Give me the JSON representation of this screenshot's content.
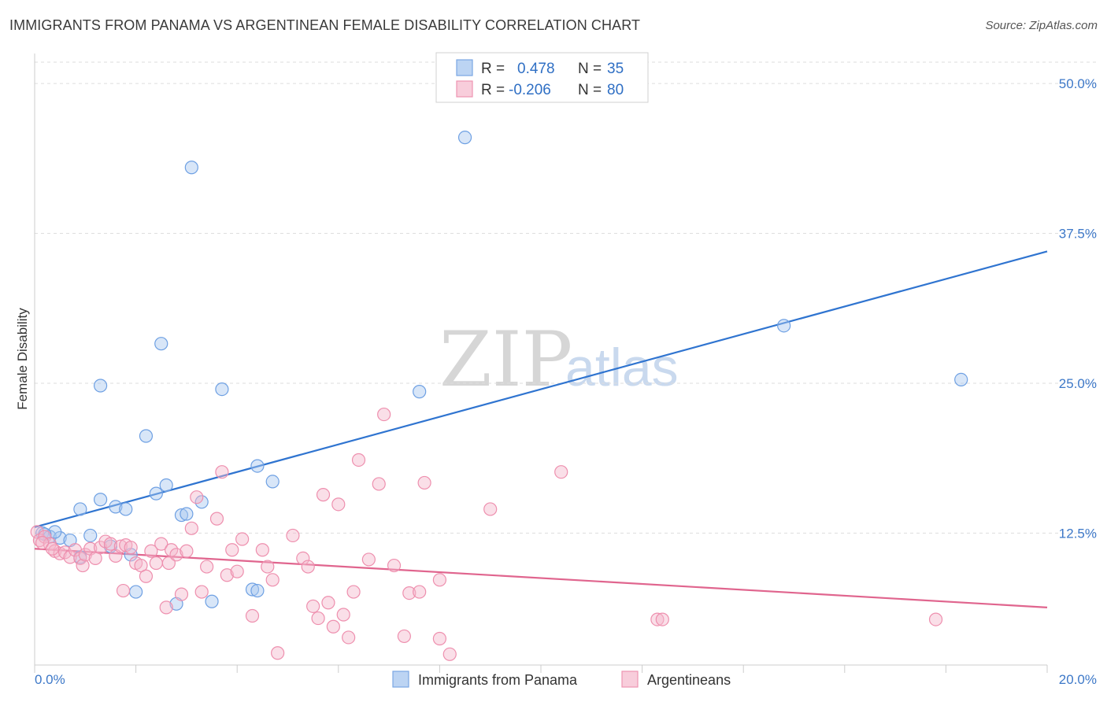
{
  "header": {
    "title": "IMMIGRANTS FROM PANAMA VS ARGENTINEAN FEMALE DISABILITY CORRELATION CHART",
    "source": "Source: ZipAtlas.com"
  },
  "watermark": {
    "zip": "ZIP",
    "atlas": "atlas"
  },
  "legend": {
    "rows": [
      {
        "r_label": "R =",
        "r_value": "0.478",
        "n_label": "N =",
        "n_value": "35",
        "color": "#a9c8f0"
      },
      {
        "r_label": "R =",
        "r_value": "-0.206",
        "n_label": "N =",
        "n_value": "80",
        "color": "#f5b8cc"
      }
    ]
  },
  "chart_data": {
    "type": "scatter",
    "title": "IMMIGRANTS FROM PANAMA VS ARGENTINEAN FEMALE DISABILITY CORRELATION CHART",
    "xlabel": "",
    "ylabel": "Female Disability",
    "xlim": [
      0,
      20
    ],
    "ylim": [
      1.5,
      52.5
    ],
    "y_ticks": [
      12.5,
      25.0,
      37.5,
      50.0
    ],
    "y_tick_labels": [
      "12.5%",
      "25.0%",
      "37.5%",
      "50.0%"
    ],
    "x_tick_labels": [
      "0.0%",
      "20.0%"
    ],
    "grid": true,
    "legend_position": "top-center",
    "series": [
      {
        "name": "Immigrants from Panama",
        "color": "#6ea0e3",
        "fill": "#a9c8f0",
        "line_color": "#2f74d0",
        "trend": {
          "x": [
            0,
            20
          ],
          "y": [
            13.0,
            36.0
          ]
        },
        "points": [
          [
            0.15,
            12.5
          ],
          [
            0.3,
            12.2
          ],
          [
            0.5,
            12.1
          ],
          [
            0.7,
            11.9
          ],
          [
            0.4,
            12.6
          ],
          [
            0.9,
            10.5
          ],
          [
            1.1,
            12.3
          ],
          [
            0.9,
            14.5
          ],
          [
            1.3,
            24.8
          ],
          [
            1.3,
            15.3
          ],
          [
            1.5,
            11.4
          ],
          [
            1.6,
            14.7
          ],
          [
            1.8,
            14.5
          ],
          [
            1.9,
            10.7
          ],
          [
            2.0,
            7.6
          ],
          [
            2.2,
            20.6
          ],
          [
            2.4,
            15.8
          ],
          [
            2.5,
            28.3
          ],
          [
            2.6,
            16.5
          ],
          [
            2.8,
            6.6
          ],
          [
            2.9,
            14.0
          ],
          [
            3.0,
            14.1
          ],
          [
            3.1,
            43.0
          ],
          [
            3.3,
            15.1
          ],
          [
            3.5,
            6.8
          ],
          [
            3.7,
            24.5
          ],
          [
            4.3,
            7.8
          ],
          [
            4.4,
            18.1
          ],
          [
            4.4,
            7.7
          ],
          [
            4.7,
            16.8
          ],
          [
            7.6,
            24.3
          ],
          [
            8.5,
            45.5
          ],
          [
            14.8,
            29.8
          ],
          [
            18.3,
            25.3
          ],
          [
            0.2,
            12.4
          ]
        ]
      },
      {
        "name": "Argentineans",
        "color": "#ee8fae",
        "fill": "#f5b8cc",
        "line_color": "#e0658e",
        "trend": {
          "x": [
            0,
            20
          ],
          "y": [
            11.2,
            6.3
          ]
        },
        "points": [
          [
            0.05,
            12.6
          ],
          [
            0.1,
            11.9
          ],
          [
            0.2,
            12.2
          ],
          [
            0.3,
            11.6
          ],
          [
            0.4,
            11.0
          ],
          [
            0.5,
            10.8
          ],
          [
            0.6,
            10.9
          ],
          [
            0.7,
            10.5
          ],
          [
            0.8,
            11.1
          ],
          [
            0.9,
            10.4
          ],
          [
            0.95,
            9.8
          ],
          [
            1.0,
            10.7
          ],
          [
            1.1,
            11.2
          ],
          [
            1.2,
            10.4
          ],
          [
            1.3,
            11.3
          ],
          [
            1.4,
            11.8
          ],
          [
            1.5,
            11.6
          ],
          [
            1.6,
            10.6
          ],
          [
            1.7,
            11.4
          ],
          [
            1.75,
            7.7
          ],
          [
            1.8,
            11.5
          ],
          [
            1.9,
            11.3
          ],
          [
            2.0,
            10.0
          ],
          [
            2.1,
            9.8
          ],
          [
            2.2,
            8.9
          ],
          [
            2.3,
            11.0
          ],
          [
            2.4,
            10.0
          ],
          [
            2.5,
            11.6
          ],
          [
            2.6,
            6.3
          ],
          [
            2.65,
            10.0
          ],
          [
            2.7,
            11.1
          ],
          [
            2.8,
            10.7
          ],
          [
            2.9,
            7.4
          ],
          [
            3.0,
            11.0
          ],
          [
            3.1,
            12.9
          ],
          [
            3.2,
            15.5
          ],
          [
            3.3,
            7.6
          ],
          [
            3.4,
            9.7
          ],
          [
            3.6,
            13.7
          ],
          [
            3.7,
            17.6
          ],
          [
            3.8,
            9.0
          ],
          [
            3.9,
            11.1
          ],
          [
            4.0,
            9.3
          ],
          [
            4.1,
            12.0
          ],
          [
            4.3,
            5.6
          ],
          [
            4.5,
            11.1
          ],
          [
            4.6,
            9.7
          ],
          [
            4.7,
            8.6
          ],
          [
            4.8,
            2.5
          ],
          [
            5.1,
            12.3
          ],
          [
            5.3,
            10.4
          ],
          [
            5.4,
            9.7
          ],
          [
            5.5,
            6.4
          ],
          [
            5.6,
            5.4
          ],
          [
            5.7,
            15.7
          ],
          [
            5.8,
            6.7
          ],
          [
            5.9,
            4.7
          ],
          [
            6.0,
            14.9
          ],
          [
            6.1,
            5.7
          ],
          [
            6.2,
            3.8
          ],
          [
            6.3,
            7.6
          ],
          [
            6.4,
            18.6
          ],
          [
            6.6,
            10.3
          ],
          [
            6.8,
            16.6
          ],
          [
            6.9,
            22.4
          ],
          [
            7.1,
            9.8
          ],
          [
            7.3,
            3.9
          ],
          [
            7.4,
            7.5
          ],
          [
            7.6,
            7.6
          ],
          [
            7.7,
            16.7
          ],
          [
            8.0,
            8.6
          ],
          [
            8.0,
            3.7
          ],
          [
            8.2,
            2.4
          ],
          [
            9.0,
            14.5
          ],
          [
            10.4,
            17.6
          ],
          [
            12.3,
            5.3
          ],
          [
            12.4,
            5.3
          ],
          [
            17.8,
            5.3
          ],
          [
            0.15,
            11.7
          ],
          [
            0.35,
            11.2
          ]
        ]
      }
    ]
  }
}
